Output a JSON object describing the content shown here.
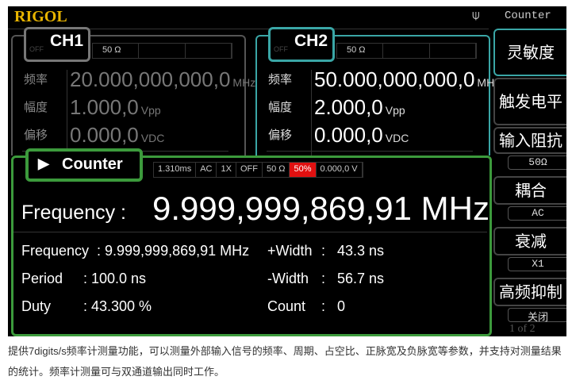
{
  "header": {
    "logo": "RIGOL",
    "mode": "Counter",
    "usb_icon": "usb-icon"
  },
  "ch1": {
    "name": "CH1",
    "state": "OFF",
    "impedance": "50 Ω",
    "rows": [
      {
        "label": "频率",
        "value": "20.000,000,000,0",
        "unit": "MHz"
      },
      {
        "label": "幅度",
        "value": "1.000,0",
        "unit": "Vpp"
      },
      {
        "label": "偏移",
        "value": "0.000,0",
        "unit": "VDC"
      }
    ]
  },
  "ch2": {
    "name": "CH2",
    "state": "OFF",
    "impedance": "50 Ω",
    "rows": [
      {
        "label": "频率",
        "value": "50.000,000,000,0",
        "unit": "MHz"
      },
      {
        "label": "幅度",
        "value": "2.000,0",
        "unit": "Vpp"
      },
      {
        "label": "偏移",
        "value": "0.000,0",
        "unit": "VDC"
      }
    ]
  },
  "counter": {
    "title": "Counter",
    "status": [
      "1.310ms",
      "AC",
      "1X",
      "OFF",
      "50 Ω",
      "50%",
      "0.000,0 V"
    ],
    "highlight_color": "#e01010",
    "big_label": "Frequency :",
    "big_value": "9.999,999,869,91 MHz",
    "left": [
      {
        "label": "Frequency",
        "value": ": 9.999,999,869,91 MHz"
      },
      {
        "label": "Period",
        "value": ":  100.0 ns"
      },
      {
        "label": "Duty",
        "value": ":  43.300 %"
      }
    ],
    "right": [
      {
        "label": "+Width",
        "sep": ":",
        "value": "43.3 ns"
      },
      {
        "label": "-Width",
        "sep": ":",
        "value": "56.7 ns"
      },
      {
        "label": "Count",
        "sep": ":",
        "value": "0"
      }
    ]
  },
  "softkeys": [
    {
      "label": "灵敏度"
    },
    {
      "label": "触发电平"
    },
    {
      "label": "输入阻抗",
      "value": "50Ω"
    },
    {
      "label": "耦合",
      "value": "AC"
    },
    {
      "label": "衰减",
      "value": "X1"
    },
    {
      "label": "高频抑制",
      "value": "关闭"
    }
  ],
  "page": "1 of 2",
  "caption": "提供7digits/s频率计测量功能，可以测量外部输入信号的频率、周期、占空比、正脉宽及负脉宽等参数，并支持对测量结果的统计。频率计测量可与双通道输出同时工作。"
}
